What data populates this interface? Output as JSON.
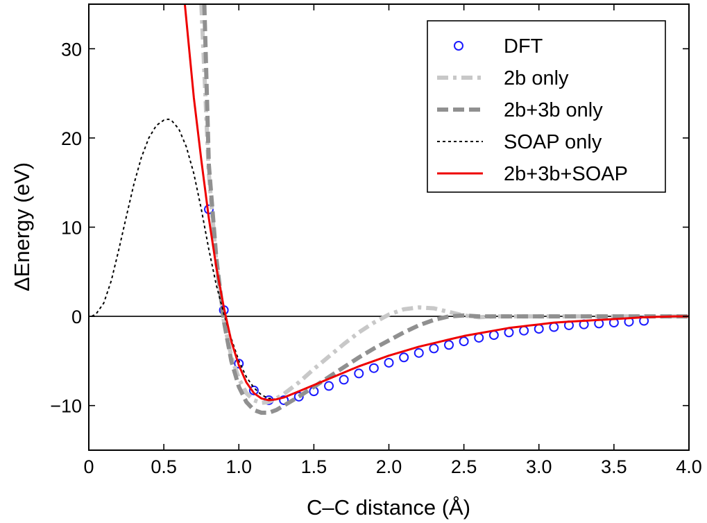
{
  "chart_data": {
    "type": "line",
    "xlabel": "C–C distance (Å)",
    "ylabel": "ΔEnergy (eV)",
    "xlim": [
      0,
      4.0
    ],
    "ylim": [
      -15,
      35
    ],
    "xticks": [
      0,
      0.5,
      1.0,
      1.5,
      2.0,
      2.5,
      3.0,
      3.5,
      4.0
    ],
    "xtick_labels": [
      "0",
      "0.5",
      "1.0",
      "1.5",
      "2.0",
      "2.5",
      "3.0",
      "3.5",
      "4.0"
    ],
    "yticks": [
      -10,
      0,
      10,
      20,
      30
    ],
    "ytick_labels": [
      "−10",
      "0",
      "10",
      "20",
      "30"
    ],
    "grid": false,
    "legend_position": "top-right",
    "zero_line": true,
    "series": [
      {
        "name": "DFT",
        "style": "markers",
        "color": "#1a1aff",
        "x": [
          0.8,
          0.9,
          1.0,
          1.1,
          1.2,
          1.3,
          1.4,
          1.5,
          1.6,
          1.7,
          1.8,
          1.9,
          2.0,
          2.1,
          2.2,
          2.3,
          2.4,
          2.5,
          2.6,
          2.7,
          2.8,
          2.9,
          3.0,
          3.1,
          3.2,
          3.3,
          3.4,
          3.5,
          3.6,
          3.7
        ],
        "y": [
          12.0,
          0.7,
          -5.3,
          -8.3,
          -9.4,
          -9.4,
          -9.0,
          -8.4,
          -7.8,
          -7.1,
          -6.4,
          -5.8,
          -5.2,
          -4.6,
          -4.1,
          -3.6,
          -3.2,
          -2.8,
          -2.4,
          -2.1,
          -1.8,
          -1.6,
          -1.4,
          -1.2,
          -1.0,
          -0.9,
          -0.8,
          -0.7,
          -0.6,
          -0.5
        ]
      },
      {
        "name": "2b only",
        "style": "dashdot",
        "color": "#c8c8c8",
        "x": [
          0.75,
          0.8,
          0.85,
          0.9,
          0.95,
          1.0,
          1.05,
          1.1,
          1.15,
          1.2,
          1.25,
          1.3,
          1.4,
          1.5,
          1.6,
          1.7,
          1.8,
          1.9,
          2.0,
          2.1,
          2.2,
          2.3,
          2.4,
          2.5,
          2.6,
          2.7,
          2.8,
          3.0,
          3.5,
          4.0
        ],
        "y": [
          35.0,
          16.0,
          6.0,
          -0.5,
          -4.5,
          -7.0,
          -8.6,
          -9.4,
          -9.7,
          -9.6,
          -9.2,
          -8.7,
          -7.4,
          -5.9,
          -4.5,
          -3.1,
          -1.8,
          -0.7,
          0.2,
          0.8,
          1.0,
          0.9,
          0.5,
          0.1,
          -0.1,
          0.0,
          0.0,
          0.0,
          0.0,
          0.0
        ]
      },
      {
        "name": "2b+3b only",
        "style": "dashed",
        "color": "#909090",
        "x": [
          0.77,
          0.8,
          0.85,
          0.9,
          0.95,
          1.0,
          1.05,
          1.1,
          1.15,
          1.2,
          1.25,
          1.3,
          1.4,
          1.5,
          1.6,
          1.7,
          1.8,
          1.9,
          2.0,
          2.1,
          2.2,
          2.3,
          2.4,
          2.5,
          2.6,
          2.8,
          3.0,
          3.5,
          4.0
        ],
        "y": [
          35.0,
          17.0,
          6.5,
          -0.5,
          -5.0,
          -7.9,
          -9.6,
          -10.5,
          -10.8,
          -10.8,
          -10.5,
          -10.0,
          -9.0,
          -7.9,
          -6.8,
          -5.7,
          -4.6,
          -3.6,
          -2.7,
          -1.8,
          -1.0,
          -0.4,
          0.0,
          0.1,
          0.0,
          0.0,
          0.0,
          0.0,
          0.0
        ]
      },
      {
        "name": "SOAP only",
        "style": "dotted",
        "color": "#000000",
        "x": [
          0.02,
          0.05,
          0.1,
          0.15,
          0.2,
          0.25,
          0.3,
          0.35,
          0.4,
          0.45,
          0.5,
          0.53,
          0.55,
          0.6,
          0.65,
          0.7,
          0.75,
          0.8,
          0.85,
          0.9,
          0.95,
          1.0,
          1.05,
          1.1,
          1.15,
          1.2,
          1.25
        ],
        "y": [
          0.0,
          0.3,
          1.5,
          4.0,
          7.5,
          11.2,
          14.8,
          17.8,
          20.0,
          21.4,
          22.0,
          22.1,
          22.0,
          21.0,
          19.0,
          16.0,
          12.0,
          7.5,
          3.5,
          0.3,
          -2.5,
          -5.0,
          -6.8,
          -8.0,
          -8.8,
          -9.2,
          -9.3
        ]
      },
      {
        "name": "2b+3b+SOAP",
        "style": "solid",
        "color": "#ee0000",
        "x": [
          0.64,
          0.7,
          0.75,
          0.8,
          0.85,
          0.9,
          0.95,
          1.0,
          1.05,
          1.1,
          1.15,
          1.2,
          1.25,
          1.3,
          1.4,
          1.5,
          1.6,
          1.7,
          1.8,
          1.9,
          2.0,
          2.1,
          2.2,
          2.3,
          2.4,
          2.5,
          2.6,
          2.7,
          2.8,
          2.9,
          3.0,
          3.1,
          3.2,
          3.3,
          3.4,
          3.5,
          3.6,
          3.7,
          3.8,
          3.9,
          4.0
        ],
        "y": [
          35.0,
          24.5,
          17.5,
          11.0,
          5.5,
          1.0,
          -2.8,
          -5.5,
          -7.4,
          -8.6,
          -9.2,
          -9.4,
          -9.3,
          -9.1,
          -8.4,
          -7.7,
          -7.0,
          -6.3,
          -5.6,
          -5.0,
          -4.4,
          -3.9,
          -3.4,
          -3.0,
          -2.6,
          -2.2,
          -1.9,
          -1.6,
          -1.3,
          -1.1,
          -0.9,
          -0.7,
          -0.6,
          -0.5,
          -0.4,
          -0.3,
          -0.2,
          -0.1,
          -0.05,
          0.0,
          0.0
        ]
      }
    ]
  }
}
